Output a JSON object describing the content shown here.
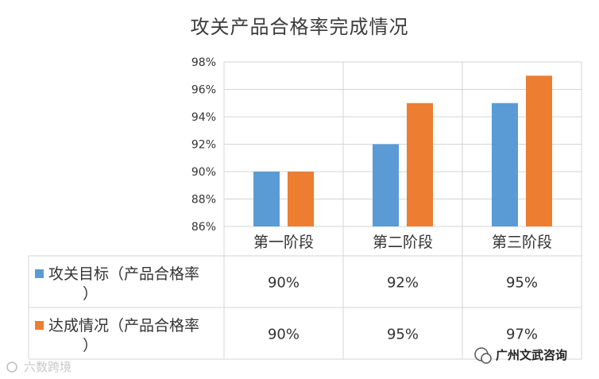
{
  "chart_data": {
    "type": "bar",
    "title": "攻关产品合格率完成情况",
    "categories": [
      "第一阶段",
      "第二阶段",
      "第三阶段"
    ],
    "series": [
      {
        "name": "攻关目标（产品合格率）",
        "values": [
          90,
          92,
          95
        ],
        "labels": [
          "90%",
          "92%",
          "95%"
        ],
        "color": "#5b9bd5"
      },
      {
        "name": "达成情况（产品合格率）",
        "values": [
          90,
          95,
          97
        ],
        "labels": [
          "90%",
          "95%",
          "97%"
        ],
        "color": "#ed7d31"
      }
    ],
    "ylim": [
      86,
      98
    ],
    "yticks": [
      "86%",
      "88%",
      "90%",
      "92%",
      "94%",
      "96%",
      "98%"
    ],
    "grid": true,
    "legend": "data-table"
  },
  "watermark": {
    "left_text": "六数跨境",
    "right_text": "广州文武咨询"
  }
}
